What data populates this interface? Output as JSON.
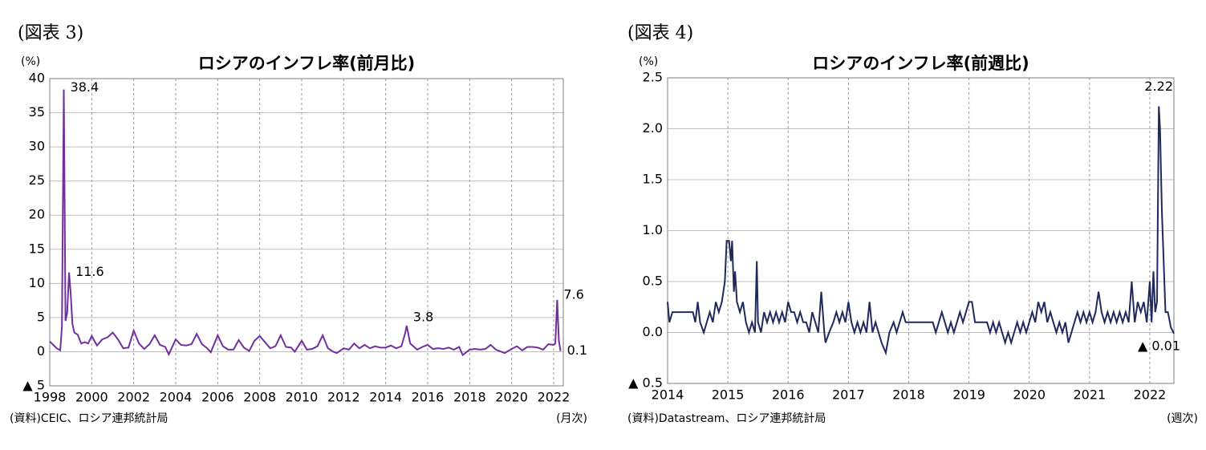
{
  "chart_data": [
    {
      "type": "line",
      "figure_label": "(図表 3)",
      "title": "ロシアのインフレ率(前月比)",
      "y_unit": "(%)",
      "source": "(資料)CEIC、ロシア連邦統計局",
      "x_unit": "(月次)",
      "xlim": [
        1998,
        2022.46
      ],
      "xticks": [
        1998,
        2000,
        2002,
        2004,
        2006,
        2008,
        2010,
        2012,
        2014,
        2016,
        2018,
        2020,
        2022
      ],
      "ylim": [
        -5,
        40
      ],
      "yticks": [
        {
          "value": -5,
          "label": "▲ 5"
        },
        0,
        5,
        10,
        15,
        20,
        25,
        30,
        35,
        40
      ],
      "grid": true,
      "x": [
        1998.0,
        1998.17,
        1998.33,
        1998.5,
        1998.58,
        1998.67,
        1998.75,
        1998.83,
        1998.92,
        1999.0,
        1999.08,
        1999.17,
        1999.33,
        1999.5,
        1999.67,
        1999.83,
        2000.0,
        2000.25,
        2000.5,
        2000.75,
        2001.0,
        2001.25,
        2001.5,
        2001.75,
        2002.0,
        2002.25,
        2002.5,
        2002.75,
        2003.0,
        2003.25,
        2003.5,
        2003.67,
        2004.0,
        2004.25,
        2004.5,
        2004.75,
        2005.0,
        2005.25,
        2005.5,
        2005.67,
        2006.0,
        2006.25,
        2006.5,
        2006.75,
        2007.0,
        2007.25,
        2007.5,
        2007.75,
        2008.0,
        2008.25,
        2008.5,
        2008.75,
        2009.0,
        2009.25,
        2009.5,
        2009.67,
        2010.0,
        2010.25,
        2010.5,
        2010.75,
        2011.0,
        2011.25,
        2011.5,
        2011.67,
        2012.0,
        2012.25,
        2012.5,
        2012.75,
        2013.0,
        2013.25,
        2013.5,
        2013.75,
        2014.0,
        2014.25,
        2014.5,
        2014.75,
        2014.92,
        2015.0,
        2015.17,
        2015.5,
        2015.75,
        2016.0,
        2016.25,
        2016.5,
        2016.75,
        2017.0,
        2017.25,
        2017.5,
        2017.67,
        2018.0,
        2018.25,
        2018.5,
        2018.75,
        2019.0,
        2019.25,
        2019.5,
        2019.67,
        2020.0,
        2020.25,
        2020.5,
        2020.75,
        2021.0,
        2021.25,
        2021.5,
        2021.75,
        2022.0,
        2022.08,
        2022.17,
        2022.25,
        2022.33
      ],
      "series": [
        {
          "name": "前月比",
          "color": "#7030a0",
          "values": [
            1.5,
            1.0,
            0.5,
            0.2,
            3.7,
            38.4,
            4.5,
            5.7,
            11.6,
            8.4,
            4.1,
            2.8,
            2.5,
            1.2,
            1.4,
            1.2,
            2.3,
            0.9,
            1.8,
            2.1,
            2.8,
            1.8,
            0.5,
            0.6,
            3.1,
            1.2,
            0.4,
            1.1,
            2.4,
            1.0,
            0.7,
            -0.4,
            1.8,
            1.0,
            0.9,
            1.1,
            2.6,
            1.1,
            0.5,
            -0.1,
            2.4,
            0.8,
            0.3,
            0.3,
            1.7,
            0.6,
            0.1,
            1.6,
            2.3,
            1.4,
            0.5,
            0.8,
            2.4,
            0.7,
            0.6,
            0.0,
            1.6,
            0.3,
            0.4,
            0.8,
            2.4,
            0.5,
            0.0,
            -0.2,
            0.5,
            0.3,
            1.2,
            0.5,
            1.0,
            0.5,
            0.8,
            0.6,
            0.6,
            0.9,
            0.5,
            0.8,
            2.6,
            3.8,
            1.2,
            0.3,
            0.7,
            1.0,
            0.4,
            0.5,
            0.4,
            0.6,
            0.3,
            0.7,
            -0.5,
            0.3,
            0.4,
            0.3,
            0.4,
            1.0,
            0.3,
            0.0,
            -0.2,
            0.4,
            0.8,
            0.2,
            0.7,
            0.7,
            0.6,
            0.3,
            1.1,
            1.0,
            1.2,
            7.6,
            1.6,
            0.1
          ]
        }
      ],
      "annotations": [
        {
          "x": 1998.67,
          "y": 38.4,
          "label": "38.4"
        },
        {
          "x": 1998.92,
          "y": 11.6,
          "label": "11.6"
        },
        {
          "x": 2015.0,
          "y": 3.8,
          "label": "3.8"
        },
        {
          "x": 2022.17,
          "y": 7.6,
          "label": "7.6"
        },
        {
          "x": 2022.33,
          "y": 0.1,
          "label": "0.1"
        }
      ]
    },
    {
      "type": "line",
      "figure_label": "(図表 4)",
      "title": "ロシアのインフレ率(前週比)",
      "y_unit": "(%)",
      "source": "(資料)Datastream、ロシア連邦統計局",
      "x_unit": "(週次)",
      "xlim": [
        2014,
        2022.4
      ],
      "xticks": [
        2014,
        2015,
        2016,
        2017,
        2018,
        2019,
        2020,
        2021,
        2022
      ],
      "ylim": [
        -0.5,
        2.5
      ],
      "yticks": [
        {
          "value": -0.5,
          "label": "▲ 0.5"
        },
        {
          "value": 0,
          "label": "0.0"
        },
        0.5,
        {
          "value": 1,
          "label": "1.0"
        },
        1.5,
        {
          "value": 2,
          "label": "2.0"
        },
        2.5
      ],
      "grid": true,
      "x": [
        2014.0,
        2014.03,
        2014.08,
        2014.3,
        2014.42,
        2014.46,
        2014.5,
        2014.54,
        2014.6,
        2014.65,
        2014.7,
        2014.75,
        2014.8,
        2014.85,
        2014.9,
        2014.95,
        2014.98,
        2015.02,
        2015.05,
        2015.07,
        2015.1,
        2015.12,
        2015.15,
        2015.2,
        2015.25,
        2015.3,
        2015.35,
        2015.4,
        2015.45,
        2015.48,
        2015.5,
        2015.55,
        2015.6,
        2015.65,
        2015.7,
        2015.75,
        2015.8,
        2015.85,
        2015.9,
        2015.95,
        2016.0,
        2016.05,
        2016.1,
        2016.15,
        2016.2,
        2016.25,
        2016.3,
        2016.35,
        2016.4,
        2016.45,
        2016.5,
        2016.55,
        2016.6,
        2016.62,
        2016.68,
        2016.75,
        2016.8,
        2016.85,
        2016.9,
        2016.95,
        2017.0,
        2017.05,
        2017.1,
        2017.15,
        2017.2,
        2017.25,
        2017.3,
        2017.35,
        2017.4,
        2017.45,
        2017.5,
        2017.55,
        2017.62,
        2017.68,
        2017.75,
        2017.8,
        2017.85,
        2017.9,
        2017.95,
        2018.0,
        2018.1,
        2018.2,
        2018.3,
        2018.4,
        2018.45,
        2018.5,
        2018.55,
        2018.6,
        2018.65,
        2018.7,
        2018.75,
        2018.8,
        2018.85,
        2018.9,
        2018.95,
        2019.0,
        2019.05,
        2019.1,
        2019.2,
        2019.3,
        2019.35,
        2019.4,
        2019.45,
        2019.5,
        2019.55,
        2019.6,
        2019.65,
        2019.7,
        2019.75,
        2019.8,
        2019.85,
        2019.9,
        2019.95,
        2020.0,
        2020.05,
        2020.1,
        2020.15,
        2020.2,
        2020.25,
        2020.3,
        2020.35,
        2020.4,
        2020.45,
        2020.5,
        2020.55,
        2020.6,
        2020.65,
        2020.7,
        2020.75,
        2020.8,
        2020.85,
        2020.9,
        2020.95,
        2021.0,
        2021.05,
        2021.1,
        2021.15,
        2021.2,
        2021.25,
        2021.3,
        2021.35,
        2021.4,
        2021.45,
        2021.5,
        2021.55,
        2021.6,
        2021.65,
        2021.7,
        2021.75,
        2021.8,
        2021.85,
        2021.9,
        2021.95,
        2022.0,
        2022.03,
        2022.06,
        2022.09,
        2022.12,
        2022.15,
        2022.17,
        2022.2,
        2022.23,
        2022.26,
        2022.3,
        2022.35,
        2022.4
      ],
      "series": [
        {
          "name": "前週比",
          "color": "#1f2a5c",
          "values": [
            0.3,
            0.1,
            0.2,
            0.2,
            0.2,
            0.1,
            0.3,
            0.1,
            0.0,
            0.1,
            0.2,
            0.1,
            0.3,
            0.2,
            0.3,
            0.5,
            0.9,
            0.9,
            0.7,
            0.9,
            0.4,
            0.6,
            0.3,
            0.2,
            0.3,
            0.1,
            0.0,
            0.1,
            0.0,
            0.7,
            0.1,
            0.0,
            0.2,
            0.1,
            0.2,
            0.1,
            0.2,
            0.1,
            0.2,
            0.1,
            0.3,
            0.2,
            0.2,
            0.1,
            0.2,
            0.1,
            0.1,
            0.0,
            0.2,
            0.1,
            0.0,
            0.4,
            0.0,
            -0.1,
            0.0,
            0.1,
            0.2,
            0.1,
            0.2,
            0.1,
            0.3,
            0.1,
            0.0,
            0.1,
            0.0,
            0.1,
            0.0,
            0.3,
            0.0,
            0.1,
            0.0,
            -0.1,
            -0.2,
            0.0,
            0.1,
            0.0,
            0.1,
            0.2,
            0.1,
            0.1,
            0.1,
            0.1,
            0.1,
            0.1,
            0.0,
            0.1,
            0.2,
            0.1,
            0.0,
            0.1,
            0.0,
            0.1,
            0.2,
            0.1,
            0.2,
            0.3,
            0.3,
            0.1,
            0.1,
            0.1,
            0.0,
            0.1,
            0.0,
            0.1,
            0.0,
            -0.1,
            0.0,
            -0.1,
            0.0,
            0.1,
            0.0,
            0.1,
            0.0,
            0.1,
            0.2,
            0.1,
            0.3,
            0.2,
            0.3,
            0.1,
            0.2,
            0.1,
            0.0,
            0.1,
            0.0,
            0.1,
            -0.1,
            0.0,
            0.1,
            0.2,
            0.1,
            0.2,
            0.1,
            0.2,
            0.1,
            0.2,
            0.4,
            0.2,
            0.1,
            0.2,
            0.1,
            0.2,
            0.1,
            0.2,
            0.1,
            0.2,
            0.1,
            0.5,
            0.1,
            0.3,
            0.2,
            0.3,
            0.1,
            0.5,
            0.1,
            0.6,
            0.2,
            0.3,
            2.22,
            2.0,
            1.2,
            0.7,
            0.2,
            0.2,
            0.05,
            -0.01
          ]
        }
      ],
      "annotations": [
        {
          "x": 2022.15,
          "y": 2.22,
          "label": "2.22"
        },
        {
          "x": 2022.4,
          "y": -0.01,
          "label": "▲ 0.01"
        }
      ]
    }
  ]
}
